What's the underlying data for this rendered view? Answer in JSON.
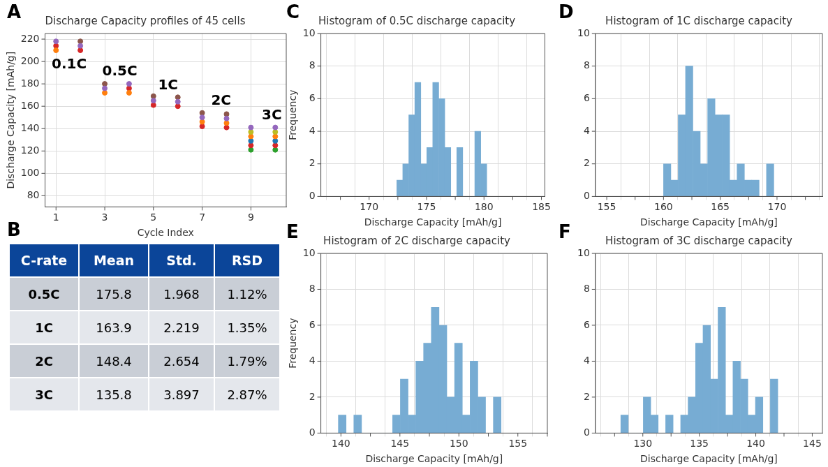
{
  "chart_data": [
    {
      "type": "scatter",
      "title": "Discharge Capacity profiles of 45 cells",
      "xlabel": "Cycle Index",
      "ylabel": "Discharge Capacity [mAh/g]",
      "annotations": [
        "A",
        "0.1C",
        "0.5C",
        "1C",
        "2C",
        "3C"
      ],
      "x": [
        1,
        2,
        3,
        4,
        5,
        6,
        7,
        8,
        9,
        10
      ],
      "xlim": [
        0.55,
        10.45
      ],
      "xticks": [
        1,
        3,
        5,
        7,
        9
      ],
      "ylim": [
        70,
        225
      ],
      "yticks": [
        80,
        100,
        120,
        140,
        160,
        180,
        200,
        220
      ],
      "grid": true,
      "marker": "circle",
      "series": [
        {
          "color": "#9467bd",
          "values": [
            218,
            214,
            176,
            180,
            165,
            164,
            150,
            149,
            141,
            141
          ]
        },
        {
          "color": "#8c564b",
          "values": [
            null,
            218,
            180,
            null,
            169,
            168,
            154,
            153,
            null,
            null
          ]
        },
        {
          "color": "#bcbd22",
          "values": [
            null,
            null,
            null,
            null,
            null,
            null,
            null,
            null,
            137,
            137
          ]
        },
        {
          "color": "#ff7f0e",
          "values": [
            210,
            null,
            172,
            172,
            null,
            null,
            146,
            145,
            133,
            133
          ]
        },
        {
          "color": "#1f77b4",
          "values": [
            null,
            null,
            null,
            null,
            null,
            null,
            null,
            null,
            129,
            129
          ]
        },
        {
          "color": "#d62728",
          "values": [
            214,
            210,
            null,
            176,
            161,
            160,
            142,
            141,
            125,
            125
          ]
        },
        {
          "color": "#2ca02c",
          "values": [
            null,
            null,
            null,
            null,
            null,
            null,
            null,
            null,
            121,
            121
          ]
        }
      ]
    },
    {
      "type": "histogram",
      "title": "Histogram of 0.5C discharge capacity",
      "xlabel": "Discharge Capacity [mAh/g]",
      "ylabel": "Frequency",
      "annotations": [
        "C"
      ],
      "color": "#77acd3",
      "grid": true,
      "bins": [
        172.41,
        172.93,
        173.45,
        173.98,
        174.5,
        175.02,
        175.54,
        176.06,
        176.59,
        177.11,
        177.63,
        178.15,
        178.67,
        179.2,
        179.72,
        180.24
      ],
      "values": [
        1,
        2,
        5,
        7,
        2,
        3,
        7,
        6,
        3,
        0,
        3,
        0,
        0,
        4,
        2
      ],
      "xlim": [
        165.8,
        185.3
      ],
      "xticks": [
        {
          "value": 167.5,
          "label": null
        },
        170,
        {
          "value": 172.5,
          "label": null
        },
        175,
        {
          "value": 177.5,
          "label": null
        },
        180,
        {
          "value": 182.5,
          "label": null
        },
        185
      ],
      "ylim": [
        0,
        10
      ],
      "yticks": [
        0,
        2,
        4,
        6,
        8,
        10
      ]
    },
    {
      "type": "histogram",
      "title": "Histogram of 1C discharge capacity",
      "xlabel": "Discharge Capacity [mAh/g]",
      "annotations": [
        "D"
      ],
      "color": "#77acd3",
      "grid": true,
      "bins": [
        160.0,
        160.65,
        161.3,
        161.94,
        162.59,
        163.24,
        163.89,
        164.54,
        165.18,
        165.83,
        166.48,
        167.13,
        167.78,
        168.42,
        169.07,
        169.72
      ],
      "values": [
        2,
        1,
        5,
        8,
        4,
        2,
        6,
        5,
        5,
        1,
        2,
        1,
        1,
        0,
        2
      ],
      "xlim": [
        154,
        174
      ],
      "xticks": [
        155,
        {
          "value": 157.5,
          "label": null
        },
        160,
        {
          "value": 162.5,
          "label": null
        },
        165,
        {
          "value": 167.5,
          "label": null
        },
        170,
        {
          "value": 172.5,
          "label": null
        }
      ],
      "ylim": [
        0,
        10
      ],
      "yticks": [
        0,
        2,
        4,
        6,
        8,
        10
      ]
    },
    {
      "type": "other",
      "xlabel": "C-rate",
      "annotations": [
        "B"
      ],
      "categories": [
        "0.5C",
        "1C",
        "2C",
        "3C"
      ],
      "data_labels": true,
      "series": [
        {
          "name": "Mean",
          "colors": [
            "#c9ced6",
            "#e4e7ec",
            "#c9ced6",
            "#e4e7ec"
          ],
          "values": [
            175.8,
            163.9,
            148.4,
            135.8
          ]
        },
        {
          "name": "Std.",
          "colors": [
            "#c9ced6",
            "#e4e7ec",
            "#c9ced6",
            "#e4e7ec"
          ],
          "values": [
            1.968,
            2.219,
            2.654,
            3.897
          ]
        },
        {
          "name": "RSD",
          "colors": [
            "#c9ced6",
            "#e4e7ec",
            "#c9ced6",
            "#e4e7ec"
          ],
          "values": [
            1.12,
            1.35,
            1.79,
            2.87
          ],
          "value_labels": [
            "1.12%",
            "1.35%",
            "1.79%",
            "2.87%"
          ]
        }
      ]
    },
    {
      "type": "histogram",
      "title": "Histogram of 2C discharge capacity",
      "xlabel": "Discharge Capacity [mAh/g]",
      "ylabel": "Frequency",
      "annotations": [
        "E"
      ],
      "color": "#77acd3",
      "grid": true,
      "bins": [
        139.78,
        140.44,
        141.09,
        141.75,
        142.41,
        143.06,
        143.72,
        144.38,
        145.04,
        145.69,
        146.35,
        147.01,
        147.66,
        148.32,
        148.98,
        149.64,
        150.29,
        150.95,
        151.61,
        152.26,
        152.92,
        153.58
      ],
      "values": [
        1,
        0,
        1,
        0,
        0,
        0,
        0,
        1,
        3,
        1,
        4,
        5,
        7,
        6,
        2,
        5,
        1,
        4,
        2,
        0,
        2
      ],
      "xlim": [
        138.3,
        157.5
      ],
      "xticks": [
        140,
        {
          "value": 142.5,
          "label": null
        },
        145,
        {
          "value": 147.5,
          "label": null
        },
        150,
        {
          "value": 152.5,
          "label": null
        },
        155,
        {
          "value": 157.5,
          "label": null
        }
      ],
      "ylim": [
        0,
        10
      ],
      "yticks": [
        0,
        2,
        4,
        6,
        8,
        10
      ]
    },
    {
      "type": "histogram",
      "title": "Histogram of 3C discharge capacity",
      "xlabel": "Discharge Capacity [mAh/g]",
      "annotations": [
        "F"
      ],
      "color": "#77acd3",
      "grid": true,
      "bins": [
        128.05,
        128.71,
        129.37,
        130.04,
        130.7,
        131.36,
        132.02,
        132.68,
        133.35,
        134.01,
        134.67,
        135.33,
        135.99,
        136.66,
        137.32,
        137.98,
        138.64,
        139.3,
        139.97,
        140.63,
        141.29,
        141.95
      ],
      "values": [
        1,
        0,
        0,
        2,
        1,
        0,
        1,
        0,
        1,
        2,
        5,
        6,
        3,
        7,
        1,
        4,
        3,
        1,
        2,
        0,
        3
      ],
      "xlim": [
        125.8,
        145.9
      ],
      "xticks": [
        {
          "value": 127.5,
          "label": null
        },
        130,
        {
          "value": 132.5,
          "label": null
        },
        135,
        {
          "value": 137.5,
          "label": null
        },
        140,
        {
          "value": 142.5,
          "label": null
        },
        145
      ],
      "ylim": [
        0,
        10
      ],
      "yticks": [
        0,
        2,
        4,
        6,
        8,
        10
      ]
    }
  ]
}
